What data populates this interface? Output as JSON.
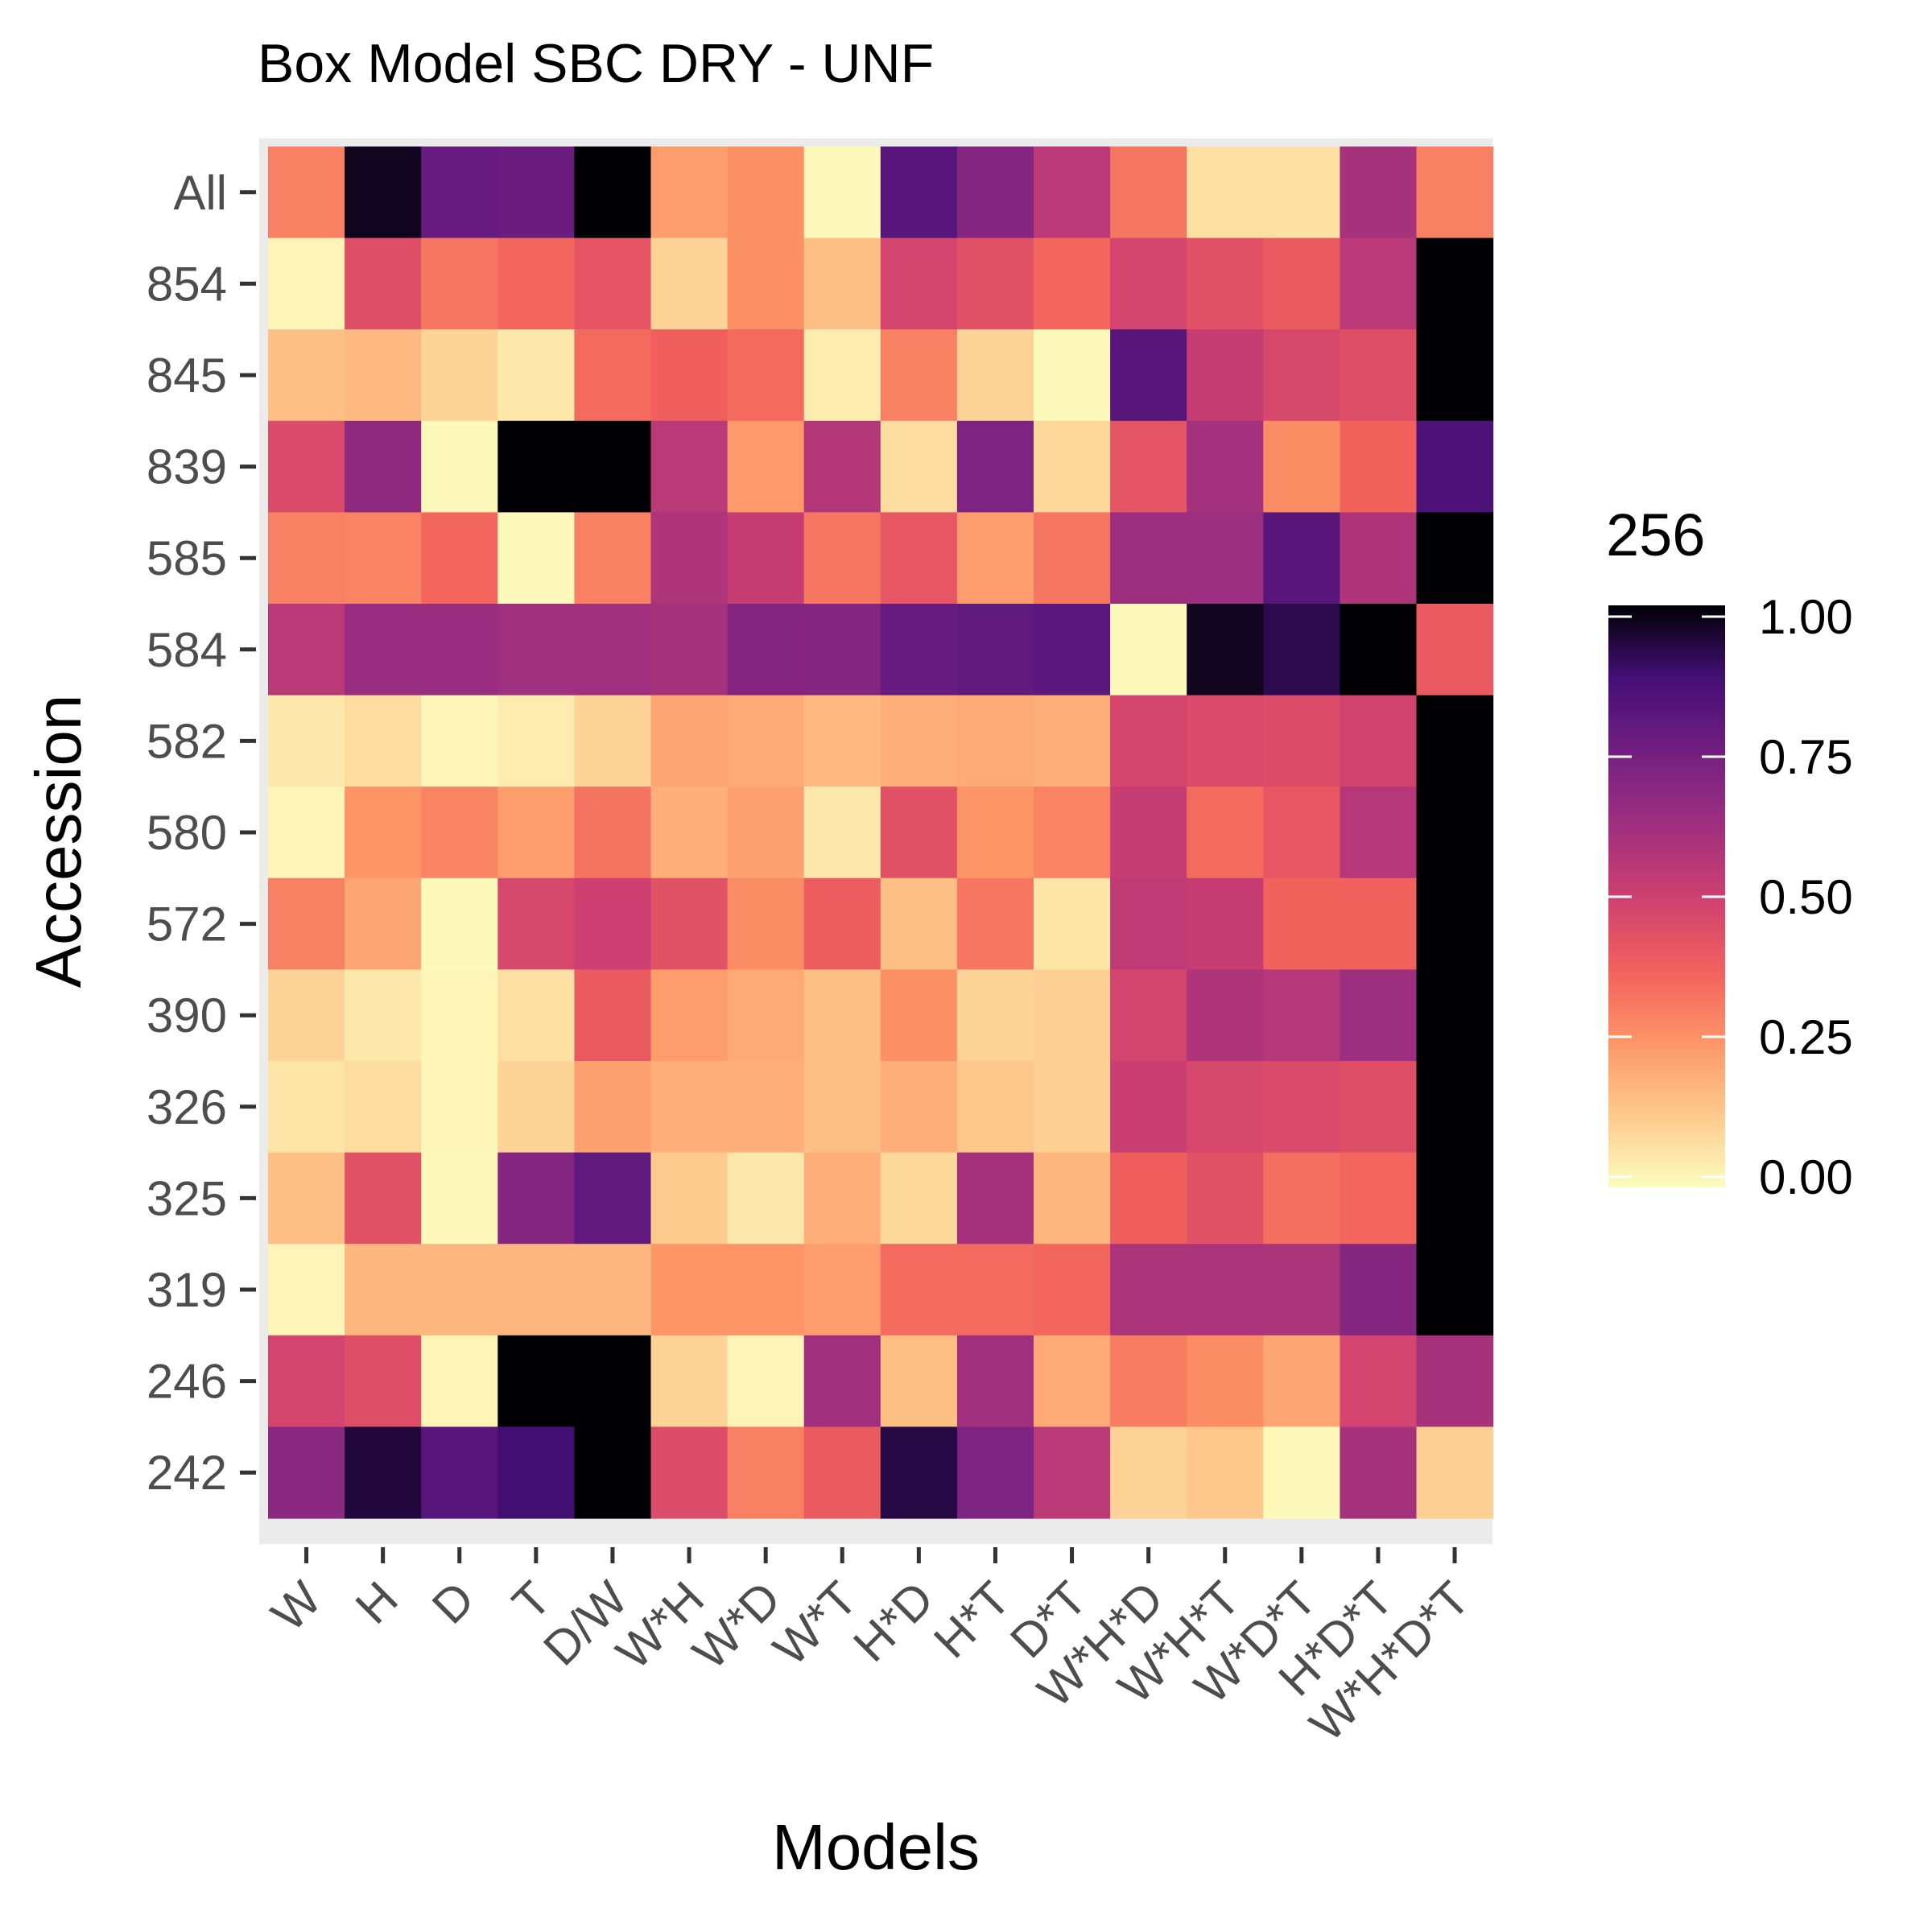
{
  "chart_data": {
    "type": "heatmap",
    "title": "Box Model SBC DRY - UNF",
    "xlabel": "Models",
    "ylabel": "Accession",
    "x_categories": [
      "W",
      "H",
      "D",
      "T",
      "D/W",
      "W*H",
      "W*D",
      "W*T",
      "H*D",
      "H*T",
      "D*T",
      "W*H*D",
      "W*H*T",
      "W*D*T",
      "H*D*T",
      "W*H*D*T"
    ],
    "y_categories": [
      "All",
      "854",
      "845",
      "839",
      "585",
      "584",
      "582",
      "580",
      "572",
      "390",
      "326",
      "325",
      "319",
      "246",
      "242"
    ],
    "values": [
      [
        0.3,
        0.97,
        0.78,
        0.77,
        1.0,
        0.23,
        0.26,
        0.01,
        0.82,
        0.7,
        0.55,
        0.32,
        0.07,
        0.07,
        0.6,
        0.3
      ],
      [
        0.02,
        0.44,
        0.32,
        0.36,
        0.42,
        0.1,
        0.26,
        0.15,
        0.48,
        0.43,
        0.36,
        0.48,
        0.43,
        0.4,
        0.55,
        1.0
      ],
      [
        0.15,
        0.16,
        0.1,
        0.05,
        0.35,
        0.38,
        0.35,
        0.04,
        0.3,
        0.1,
        0.01,
        0.82,
        0.52,
        0.47,
        0.44,
        1.0
      ],
      [
        0.46,
        0.67,
        0.01,
        1.0,
        1.0,
        0.55,
        0.24,
        0.57,
        0.08,
        0.72,
        0.09,
        0.42,
        0.61,
        0.27,
        0.37,
        0.85
      ],
      [
        0.3,
        0.29,
        0.36,
        0.01,
        0.3,
        0.58,
        0.52,
        0.32,
        0.41,
        0.23,
        0.32,
        0.63,
        0.63,
        0.82,
        0.58,
        1.0
      ],
      [
        0.55,
        0.64,
        0.64,
        0.62,
        0.62,
        0.6,
        0.7,
        0.7,
        0.78,
        0.8,
        0.81,
        0.01,
        0.97,
        0.92,
        1.0,
        0.4
      ],
      [
        0.05,
        0.08,
        0.02,
        0.04,
        0.1,
        0.21,
        0.2,
        0.16,
        0.19,
        0.2,
        0.19,
        0.48,
        0.46,
        0.45,
        0.49,
        1.0
      ],
      [
        0.02,
        0.25,
        0.29,
        0.23,
        0.33,
        0.19,
        0.22,
        0.05,
        0.43,
        0.25,
        0.29,
        0.52,
        0.35,
        0.41,
        0.56,
        1.0
      ],
      [
        0.3,
        0.21,
        0.01,
        0.47,
        0.5,
        0.43,
        0.27,
        0.39,
        0.15,
        0.32,
        0.06,
        0.54,
        0.52,
        0.37,
        0.37,
        1.0
      ],
      [
        0.1,
        0.05,
        0.02,
        0.07,
        0.4,
        0.23,
        0.2,
        0.15,
        0.26,
        0.1,
        0.11,
        0.48,
        0.58,
        0.56,
        0.63,
        1.0
      ],
      [
        0.06,
        0.08,
        0.02,
        0.1,
        0.22,
        0.19,
        0.19,
        0.15,
        0.19,
        0.13,
        0.11,
        0.51,
        0.47,
        0.46,
        0.44,
        1.0
      ],
      [
        0.15,
        0.43,
        0.01,
        0.7,
        0.8,
        0.12,
        0.05,
        0.19,
        0.09,
        0.6,
        0.17,
        0.38,
        0.43,
        0.34,
        0.36,
        1.0
      ],
      [
        0.02,
        0.17,
        0.17,
        0.17,
        0.17,
        0.25,
        0.25,
        0.23,
        0.35,
        0.35,
        0.36,
        0.59,
        0.59,
        0.59,
        0.7,
        1.0
      ],
      [
        0.48,
        0.44,
        0.02,
        1.0,
        1.0,
        0.1,
        0.02,
        0.62,
        0.15,
        0.62,
        0.2,
        0.31,
        0.27,
        0.21,
        0.48,
        0.6
      ],
      [
        0.68,
        0.94,
        0.82,
        0.88,
        1.0,
        0.45,
        0.3,
        0.4,
        0.93,
        0.72,
        0.55,
        0.1,
        0.13,
        0.01,
        0.6,
        0.11
      ]
    ],
    "color_scale": {
      "name": "magma (reversed)",
      "min": 0,
      "max": 1,
      "low_color": "#fcfdbf",
      "high_color": "#000004"
    },
    "legend": {
      "title": "256",
      "placement": "right",
      "ticks": [
        "0.00",
        "0.25",
        "0.50",
        "0.75",
        "1.00"
      ]
    },
    "grid": true,
    "panel_background": "#ebebeb"
  }
}
